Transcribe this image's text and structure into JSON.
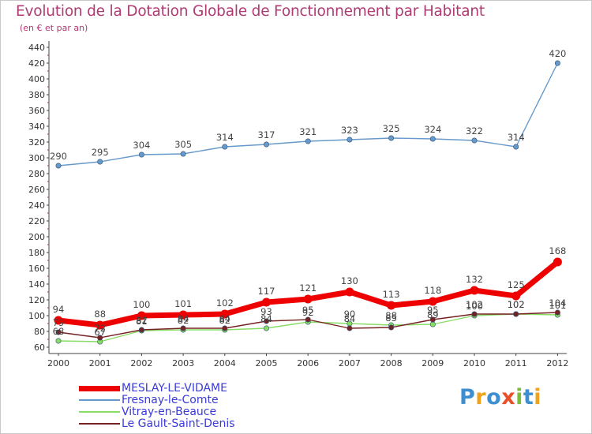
{
  "chart_data": {
    "type": "line",
    "title": "Evolution de la Dotation Globale de Fonctionnement par Habitant",
    "subtitle": "(en € et par an)",
    "categories": [
      "2000",
      "2001",
      "2002",
      "2003",
      "2004",
      "2005",
      "2006",
      "2007",
      "2008",
      "2009",
      "2010",
      "2011",
      "2012"
    ],
    "ylim": [
      60,
      440
    ],
    "ytick_step": 20,
    "grid": false,
    "series": [
      {
        "name": "MESLAY-LE-VIDAME",
        "color": "#ee0000",
        "emphasis": true,
        "label_pos": "above",
        "values": [
          94,
          88,
          100,
          101,
          102,
          117,
          121,
          130,
          113,
          118,
          132,
          125,
          168
        ]
      },
      {
        "name": "Fresnay-le-Comte",
        "color": "#6699cc",
        "emphasis": false,
        "label_pos": "above",
        "values": [
          290,
          295,
          304,
          305,
          314,
          317,
          321,
          323,
          325,
          324,
          322,
          314,
          420
        ]
      },
      {
        "name": "Vitray-en-Beauce",
        "color": "#88dd66",
        "emphasis": false,
        "label_pos": "above",
        "values": [
          68,
          67,
          81,
          82,
          82,
          84,
          92,
          90,
          88,
          89,
          100,
          102,
          101
        ]
      },
      {
        "name": "Le Gault-Saint-Denis",
        "color": "#772222",
        "emphasis": false,
        "label_pos": "above",
        "values": [
          79,
          72,
          82,
          84,
          84,
          93,
          95,
          84,
          85,
          95,
          102,
          102,
          104
        ]
      }
    ]
  },
  "logo": {
    "text": "Proxiti",
    "letters": [
      "P",
      "r",
      "o",
      "x",
      "i",
      "t",
      "i"
    ],
    "colors": [
      "#3d8fd1",
      "#f0a21e",
      "#3d8fd1",
      "#e8502a",
      "#7bbd3d",
      "#3d8fd1",
      "#f0a21e"
    ]
  }
}
